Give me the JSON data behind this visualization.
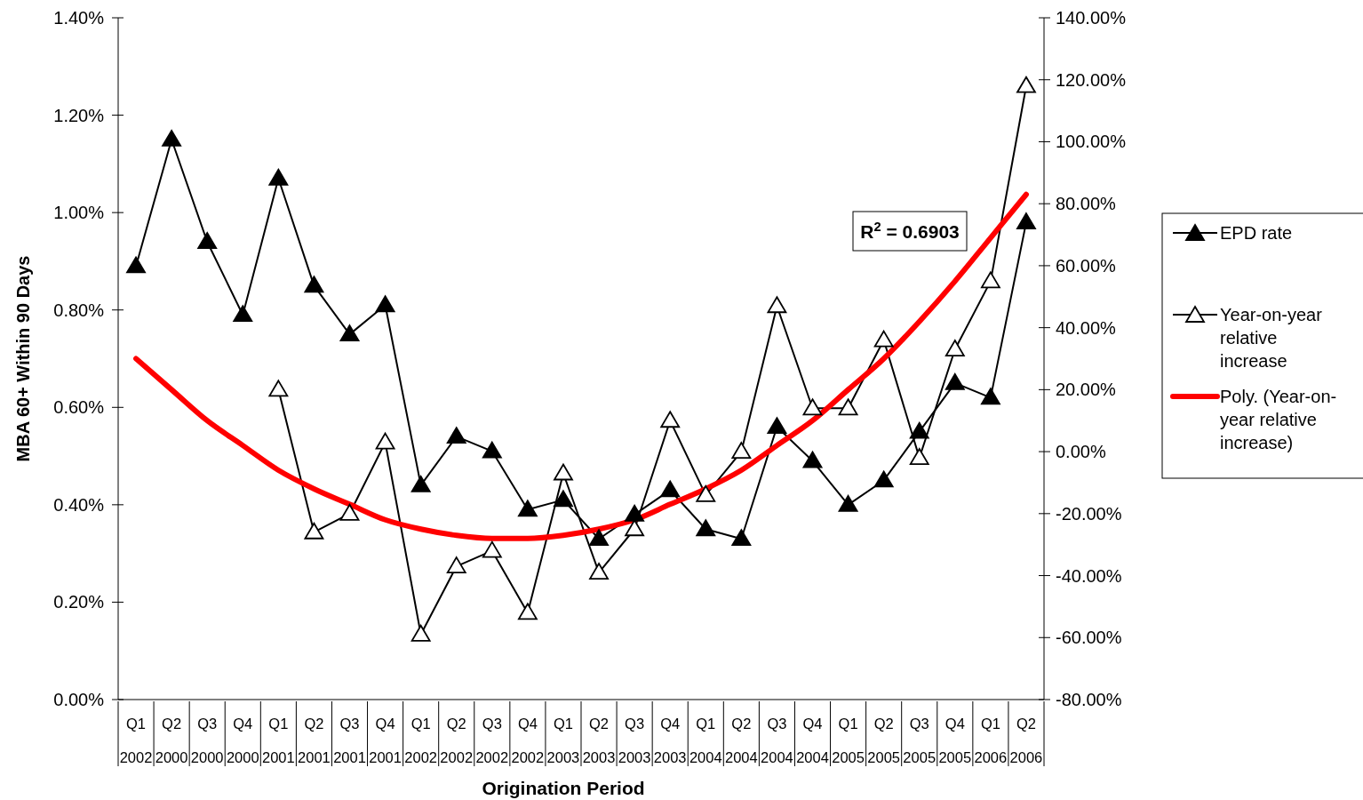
{
  "chart_data": {
    "type": "line",
    "xlabel": "Origination Period",
    "ylabel": "MBA 60+ Within 90 Days",
    "categories": [
      "Q1 2002",
      "Q2 2000",
      "Q3 2000",
      "Q4 2000",
      "Q1 2001",
      "Q2 2001",
      "Q3 2001",
      "Q4 2001",
      "Q1 2002",
      "Q2 2002",
      "Q3 2002",
      "Q4 2002",
      "Q1 2003",
      "Q2 2003",
      "Q3 2003",
      "Q4 2003",
      "Q1 2004",
      "Q2 2004",
      "Q3 2004",
      "Q4 2004",
      "Q1 2005",
      "Q2 2005",
      "Q3 2005",
      "Q4 2005",
      "Q1 2006",
      "Q2 2006"
    ],
    "series": [
      {
        "name": "EPD rate",
        "color": "#000000",
        "marker": "triangle",
        "values": [
          0.89,
          1.15,
          0.94,
          0.79,
          1.07,
          0.85,
          0.75,
          0.81,
          0.44,
          0.54,
          0.51,
          0.39,
          0.41,
          0.33,
          0.38,
          0.43,
          0.35,
          0.33,
          0.56,
          0.49,
          0.4,
          0.45,
          0.55,
          0.65,
          0.62,
          0.98
        ]
      },
      {
        "name": "Year-on-year relative increase",
        "color": "#000000",
        "marker": "triangle",
        "axis": "y2",
        "values": [
          null,
          null,
          null,
          null,
          20,
          -26,
          -20,
          3,
          -59,
          -37,
          -32,
          -52,
          -7,
          -39,
          -25,
          10,
          -14,
          0,
          47,
          14,
          14,
          36,
          -2,
          33,
          55,
          118
        ]
      },
      {
        "name": "Poly. (Year-on-year relative increase)",
        "color": "#ff0000",
        "marker": "none",
        "axis": "y2",
        "values": [
          30,
          20,
          10,
          2,
          -6,
          -12,
          -17,
          -22,
          -25,
          -27,
          -28,
          -28,
          -27,
          -25,
          -22,
          -17,
          -12,
          -6,
          2,
          10,
          20,
          30,
          42,
          55,
          69,
          83
        ]
      }
    ],
    "ylim": [
      0,
      1.4
    ],
    "yticks": [
      {
        "value": 0,
        "label": "0.00%"
      },
      {
        "value": 0.2,
        "label": "0.20%"
      },
      {
        "value": 0.4,
        "label": "0.40%"
      },
      {
        "value": 0.6,
        "label": "0.60%"
      },
      {
        "value": 0.8,
        "label": "0.80%"
      },
      {
        "value": 1.0,
        "label": "1.00%"
      },
      {
        "value": 1.2,
        "label": "1.20%"
      },
      {
        "value": 1.4,
        "label": "1.40%"
      }
    ],
    "y2lim": [
      -80,
      140
    ],
    "y2ticks": [
      {
        "value": -80,
        "label": "-80.00%"
      },
      {
        "value": -60,
        "label": "-60.00%"
      },
      {
        "value": -40,
        "label": "-40.00%"
      },
      {
        "value": -20,
        "label": "-20.00%"
      },
      {
        "value": 0,
        "label": "0.00%"
      },
      {
        "value": 20,
        "label": "20.00%"
      },
      {
        "value": 40,
        "label": "40.00%"
      },
      {
        "value": 60,
        "label": "60.00%"
      },
      {
        "value": 80,
        "label": "80.00%"
      },
      {
        "value": 100,
        "label": "100.00%"
      },
      {
        "value": 120,
        "label": "120.00%"
      },
      {
        "value": 140,
        "label": "140.00%"
      }
    ],
    "annotations": [
      "R$^{2}$ = 0.6903"
    ],
    "legend": "right",
    "grid": false
  }
}
